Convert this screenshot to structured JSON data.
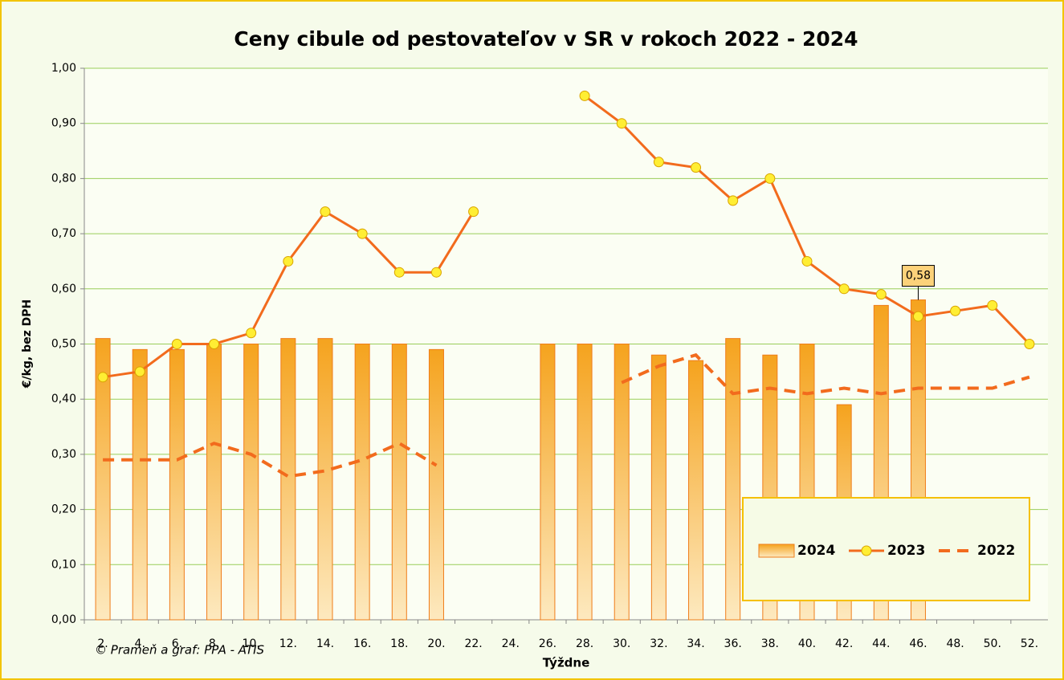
{
  "chart_data": {
    "type": "bar-line",
    "title": "Ceny cibule od pestovateľov v SR v rokoch 2022 - 2024",
    "y_label": "€/kg, bez DPH",
    "x_label": "Týždne",
    "source": "© Prameň a graf: PPA - ATIS",
    "categories": [
      "2.",
      "4.",
      "6.",
      "8.",
      "10.",
      "12.",
      "14.",
      "16.",
      "18.",
      "20.",
      "22.",
      "24.",
      "26.",
      "28.",
      "30.",
      "32.",
      "34.",
      "36.",
      "38.",
      "40.",
      "42.",
      "44.",
      "46.",
      "48.",
      "50.",
      "52."
    ],
    "series": [
      {
        "name": "2024",
        "type": "bar",
        "color": "#f5a31e",
        "values": [
          0.51,
          0.49,
          0.49,
          0.5,
          0.5,
          0.51,
          0.51,
          0.5,
          0.5,
          0.49,
          null,
          null,
          0.5,
          0.5,
          0.5,
          0.48,
          0.47,
          0.51,
          0.48,
          0.5,
          0.39,
          0.57,
          0.58,
          null,
          null,
          null
        ],
        "value_labels": [
          null,
          null,
          null,
          null,
          null,
          null,
          null,
          null,
          null,
          null,
          null,
          null,
          null,
          null,
          null,
          null,
          null,
          null,
          null,
          null,
          null,
          null,
          "0,58",
          null,
          null,
          null
        ]
      },
      {
        "name": "2023",
        "type": "line",
        "color": "#f26b1d",
        "marker_color": "#ffee33",
        "values": [
          0.44,
          0.45,
          0.5,
          0.5,
          0.52,
          0.65,
          0.74,
          0.7,
          0.63,
          0.63,
          0.74,
          null,
          null,
          0.95,
          0.9,
          0.83,
          0.82,
          0.76,
          0.8,
          0.65,
          0.6,
          0.59,
          0.55,
          0.56,
          0.57,
          0.5
        ]
      },
      {
        "name": "2022",
        "type": "dashed",
        "color": "#f26b1d",
        "values": [
          0.29,
          0.29,
          0.29,
          0.32,
          0.3,
          0.26,
          0.27,
          0.29,
          0.32,
          0.28,
          null,
          null,
          null,
          null,
          0.43,
          0.46,
          0.48,
          0.41,
          0.42,
          0.41,
          0.42,
          0.41,
          0.42,
          0.42,
          0.42,
          0.44
        ]
      }
    ],
    "ylim": [
      0,
      1
    ],
    "yticks": [
      {
        "value": 0,
        "label": "0,00"
      },
      {
        "value": 0.1,
        "label": "0,10"
      },
      {
        "value": 0.2,
        "label": "0,20"
      },
      {
        "value": 0.3,
        "label": "0,30"
      },
      {
        "value": 0.4,
        "label": "0,40"
      },
      {
        "value": 0.5,
        "label": "0,50"
      },
      {
        "value": 0.6,
        "label": "0,60"
      },
      {
        "value": 0.7,
        "label": "0,70"
      },
      {
        "value": 0.8,
        "label": "0,80"
      },
      {
        "value": 0.9,
        "label": "0,90"
      },
      {
        "value": 1,
        "label": "1,00"
      }
    ],
    "grid": true
  }
}
